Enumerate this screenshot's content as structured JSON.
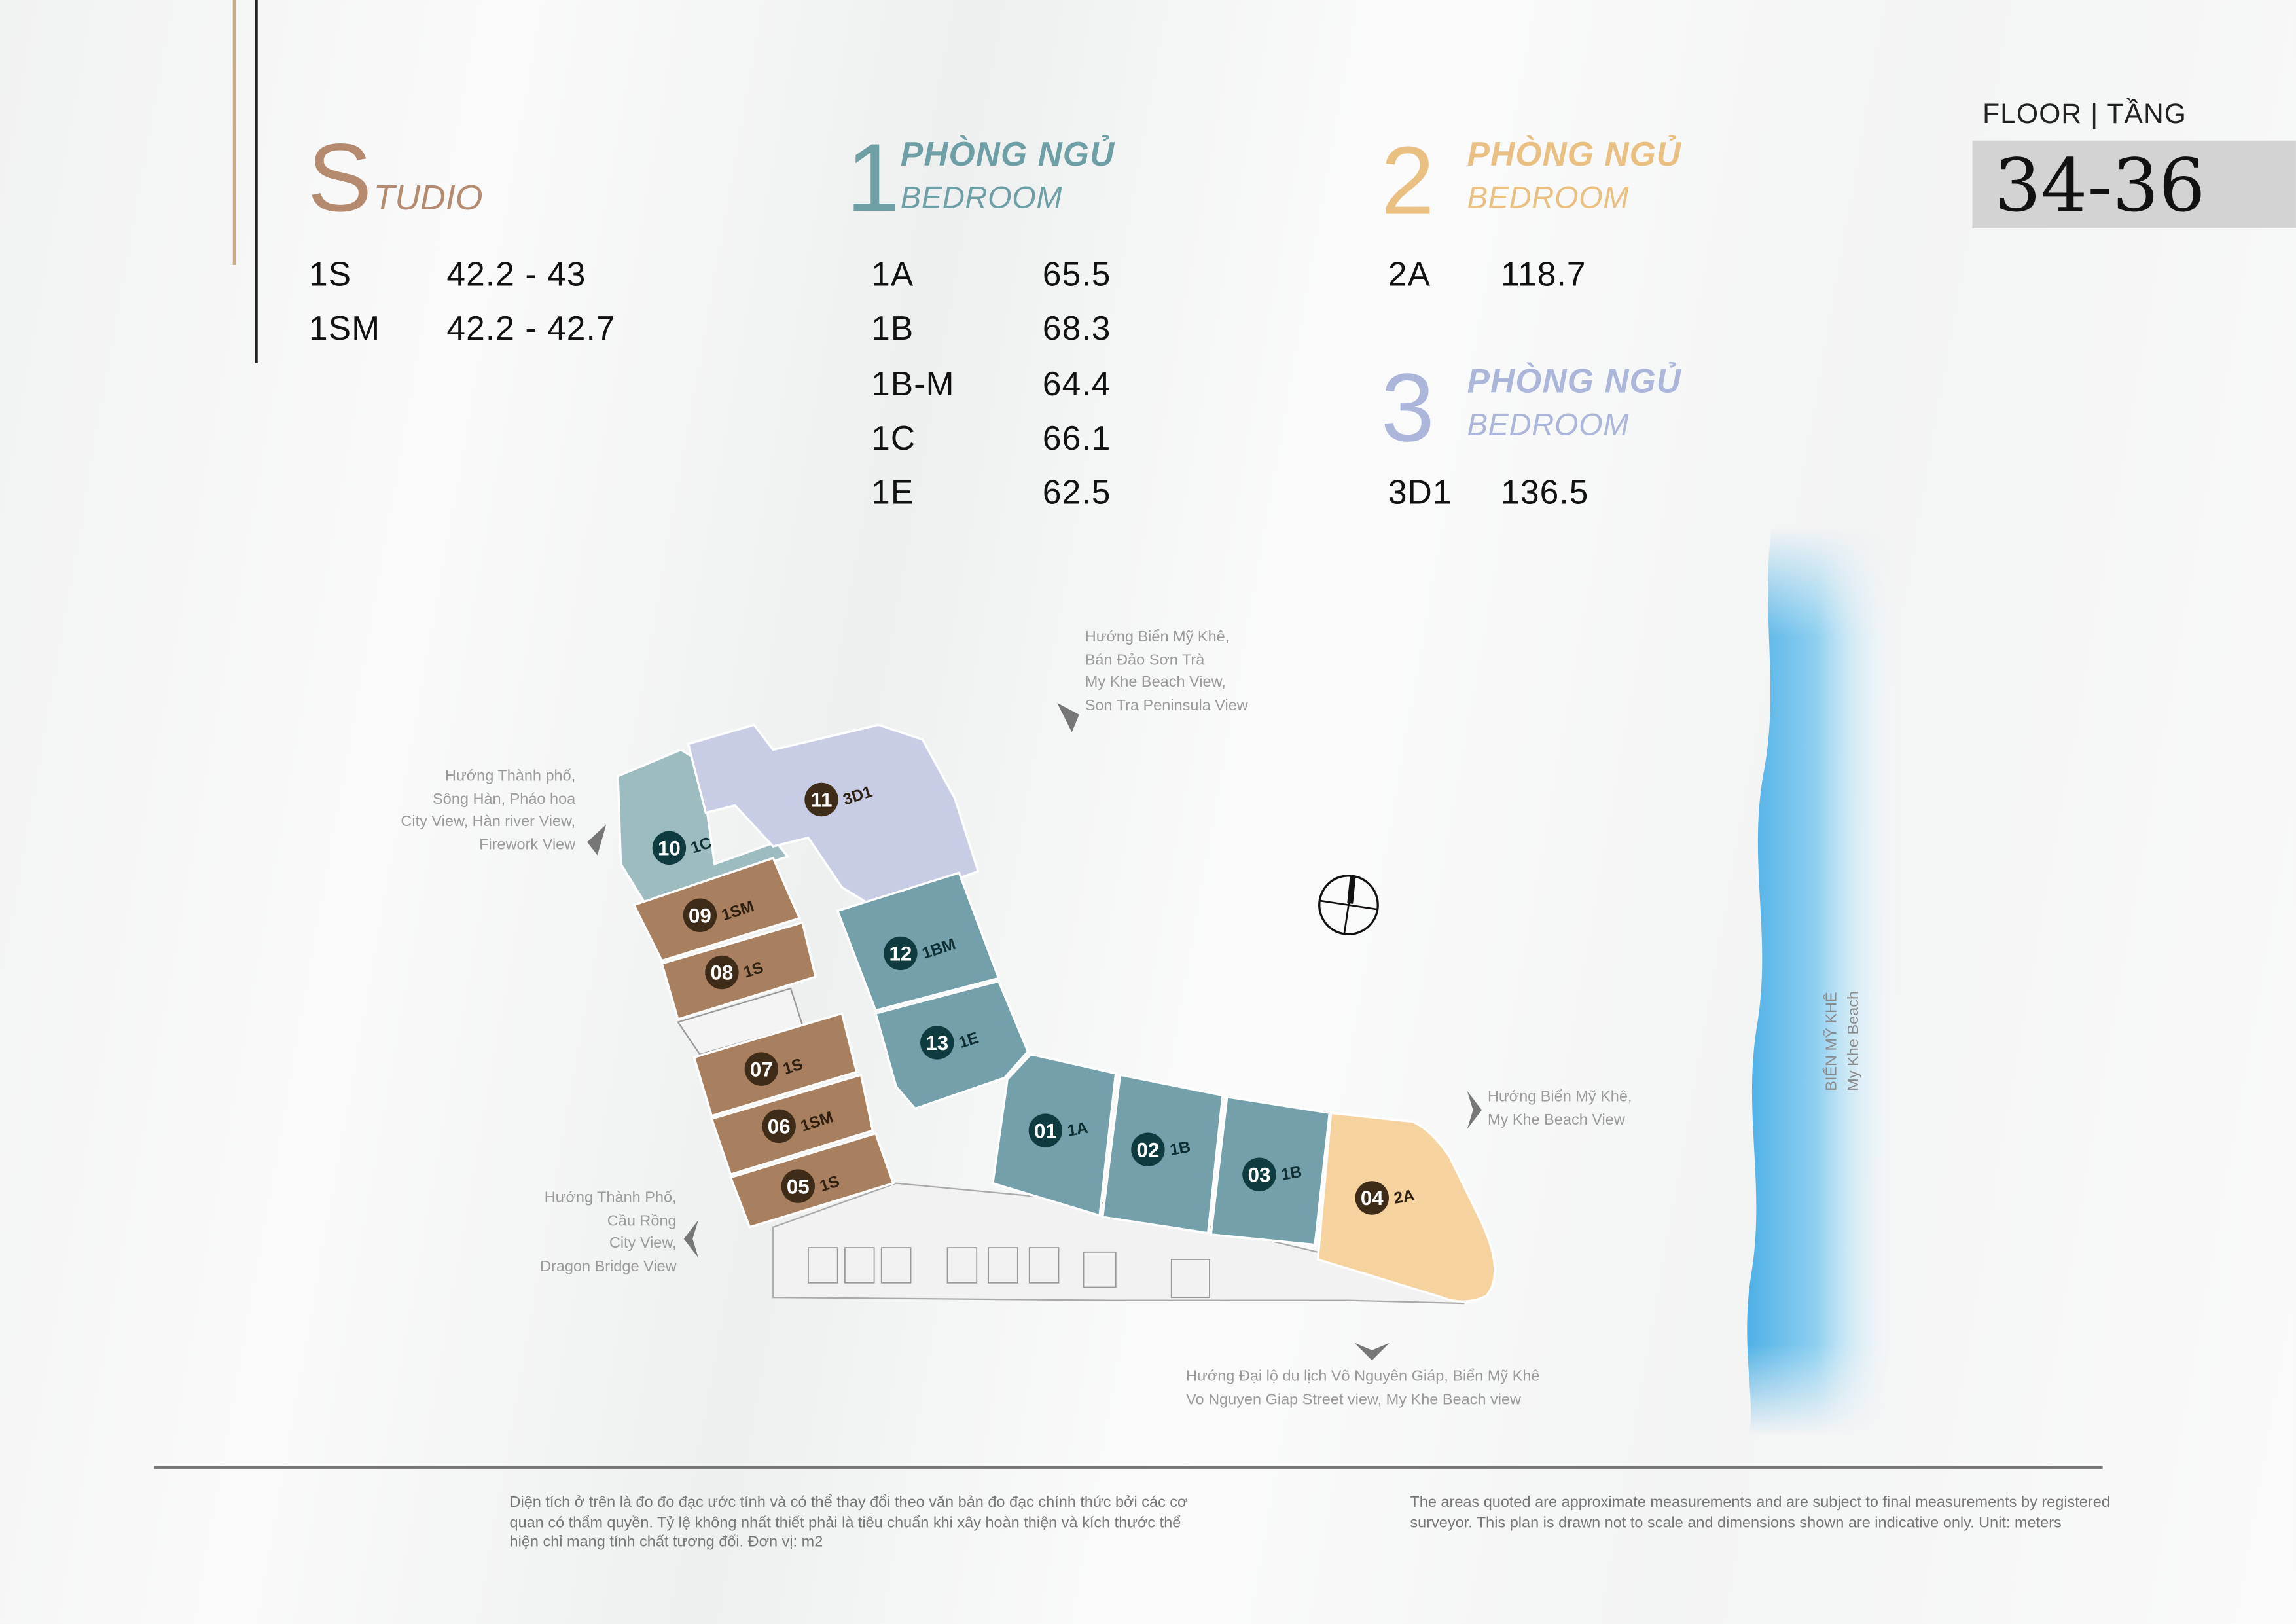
{
  "studio": {
    "initial": "S",
    "rest": "TUDIO",
    "color": "#b58a6e",
    "rows": [
      {
        "type": "1S",
        "area": "42.2 - 43"
      },
      {
        "type": "1SM",
        "area": "42.2 - 42.7"
      }
    ]
  },
  "one_bedroom": {
    "number": "1",
    "vn": "PHÒNG NGỦ",
    "en": "BEDROOM",
    "color": "#6e9fa5",
    "rows": [
      {
        "type": "1A",
        "area": "65.5"
      },
      {
        "type": "1B",
        "area": "68.3"
      },
      {
        "type": "1B-M",
        "area": "64.4"
      },
      {
        "type": "1C",
        "area": "66.1"
      },
      {
        "type": "1E",
        "area": "62.5"
      }
    ]
  },
  "two_bedroom": {
    "number": "2",
    "vn": "PHÒNG NGỦ",
    "en": "BEDROOM",
    "color": "#e9bf82",
    "rows": [
      {
        "type": "2A",
        "area": "118.7"
      }
    ]
  },
  "three_bedroom": {
    "number": "3",
    "vn": "PHÒNG NGỦ",
    "en": "BEDROOM",
    "color": "#abb6da",
    "rows": [
      {
        "type": "3D1",
        "area": "136.5"
      }
    ]
  },
  "floor": {
    "label": "FLOOR | TẦNG",
    "value": "34-36"
  },
  "units": [
    {
      "no": "01",
      "type": "1A"
    },
    {
      "no": "02",
      "type": "1B"
    },
    {
      "no": "03",
      "type": "1B"
    },
    {
      "no": "04",
      "type": "2A"
    },
    {
      "no": "05",
      "type": "1S"
    },
    {
      "no": "06",
      "type": "1SM"
    },
    {
      "no": "07",
      "type": "1S"
    },
    {
      "no": "08",
      "type": "1S"
    },
    {
      "no": "09",
      "type": "1SM"
    },
    {
      "no": "10",
      "type": "1C"
    },
    {
      "no": "11",
      "type": "3D1"
    },
    {
      "no": "12",
      "type": "1BM"
    },
    {
      "no": "13",
      "type": "1E"
    }
  ],
  "views": {
    "north": [
      "Hướng Biển Mỹ Khê,",
      "Bán Đảo Sơn Trà",
      "My Khe Beach View,",
      "Son Tra Peninsula View"
    ],
    "northwest": [
      "Hướng Thành phố,",
      "Sông Hàn, Pháo hoa",
      "City View, Hàn river View,",
      "Firework View"
    ],
    "east": [
      "Hướng Biển Mỹ Khê,",
      "My Khe Beach View"
    ],
    "west": [
      "Hướng Thành Phố,",
      "Cầu Rồng",
      "City View,",
      "Dragon Bridge View"
    ],
    "south": [
      "Hướng Đại lộ du lịch Võ Nguyên Giáp, Biển Mỹ Khê",
      "Vo Nguyen Giap Street view, My Khe Beach view"
    ]
  },
  "beach": {
    "vn": "BIỂN MỸ KHÊ",
    "en": "My Khe Beach"
  },
  "footer": {
    "vn": "Diện tích ở trên là đo đo đạc ước tính và có thể thay đổi theo văn bản đo đạc chính thức bởi các cơ quan có thẩm quyền. Tỷ lệ không nhất thiết phải là tiêu chuẩn khi xây hoàn thiện và kích thước thể hiện chỉ mang tính chất tương đối. Đơn vị: m2",
    "en": "The areas quoted are approximate measurements and are subject to final measurements by registered surveyor. This plan is drawn not to scale and dimensions shown are indicative only. Unit: meters"
  },
  "colors": {
    "studio": "#a9805f",
    "one_bedroom": "#74a0ab",
    "one_c": "#9cbcc0",
    "three_bedroom": "#c8cce5",
    "two_bedroom": "#f6d39e",
    "badge_teal": "#0d3b3f",
    "badge_brown": "#3e2c18"
  }
}
